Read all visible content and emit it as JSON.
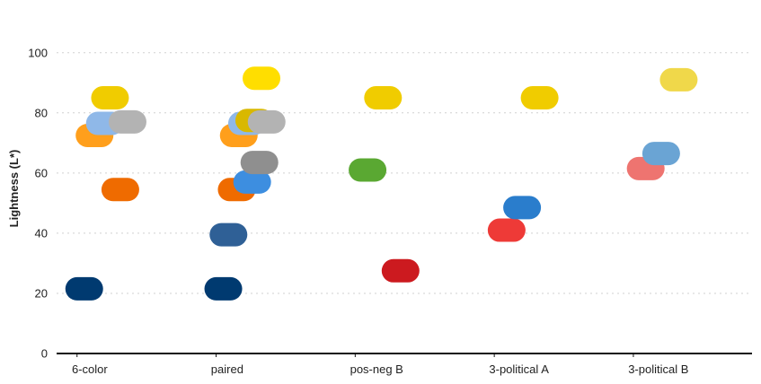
{
  "chart_data": {
    "type": "scatter",
    "ylabel": "Lightness (L*)",
    "xlabel": "",
    "ylim": [
      0,
      105
    ],
    "yticks": [
      0,
      20,
      40,
      60,
      80,
      100
    ],
    "grid": true,
    "categories": [
      "6-color",
      "paired",
      "pos-neg B",
      "3-political A",
      "3-political B"
    ],
    "series": [
      {
        "category": "6-color",
        "points": [
          {
            "offset": 0.05,
            "y": 21.5,
            "color": "#003a70"
          },
          {
            "offset": 0.15,
            "y": 72.5,
            "color": "#ff9f1c"
          },
          {
            "offset": 0.25,
            "y": 76.5,
            "color": "#8fb8e8"
          },
          {
            "offset": 0.3,
            "y": 85,
            "color": "#f0cc00"
          },
          {
            "offset": 0.4,
            "y": 54.5,
            "color": "#ef6b00"
          },
          {
            "offset": 0.47,
            "y": 77,
            "color": "#b3b3b3"
          }
        ]
      },
      {
        "category": "paired",
        "points": [
          {
            "offset": 0.05,
            "y": 21.5,
            "color": "#003a70"
          },
          {
            "offset": 0.1,
            "y": 39.5,
            "color": "#2f6096"
          },
          {
            "offset": 0.18,
            "y": 54.5,
            "color": "#ef6b00"
          },
          {
            "offset": 0.2,
            "y": 72.5,
            "color": "#ff9f1c"
          },
          {
            "offset": 0.28,
            "y": 76.5,
            "color": "#8fb8e8"
          },
          {
            "offset": 0.33,
            "y": 57,
            "color": "#3d8ee0"
          },
          {
            "offset": 0.35,
            "y": 77.5,
            "color": "#d9b800"
          },
          {
            "offset": 0.4,
            "y": 63.5,
            "color": "#8f8f8f"
          },
          {
            "offset": 0.42,
            "y": 91.5,
            "color": "#ffde00"
          },
          {
            "offset": 0.47,
            "y": 77,
            "color": "#b3b3b3"
          }
        ]
      },
      {
        "category": "pos-neg B",
        "points": [
          {
            "offset": 0.1,
            "y": 61,
            "color": "#5aa832"
          },
          {
            "offset": 0.25,
            "y": 85,
            "color": "#f0cc00"
          },
          {
            "offset": 0.42,
            "y": 27.5,
            "color": "#cc1a1f"
          }
        ]
      },
      {
        "category": "3-political A",
        "points": [
          {
            "offset": 0.1,
            "y": 41,
            "color": "#ee3a37"
          },
          {
            "offset": 0.25,
            "y": 48.5,
            "color": "#2a7dcc"
          },
          {
            "offset": 0.42,
            "y": 85,
            "color": "#f0cc00"
          }
        ]
      },
      {
        "category": "3-political B",
        "points": [
          {
            "offset": 0.1,
            "y": 61.5,
            "color": "#ee7470"
          },
          {
            "offset": 0.25,
            "y": 66.5,
            "color": "#6aa4d4"
          },
          {
            "offset": 0.42,
            "y": 91,
            "color": "#f0d84a"
          }
        ]
      }
    ]
  }
}
